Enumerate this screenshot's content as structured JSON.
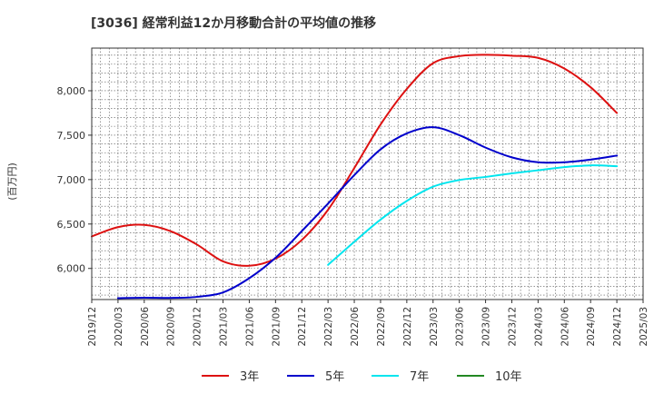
{
  "chart_data": {
    "type": "line",
    "title": "[3036]  経常利益12か月移動合計の平均値の推移",
    "ylabel": "(百万円)",
    "xlabel": "",
    "x_ticks": [
      "2019/12",
      "2020/03",
      "2020/06",
      "2020/09",
      "2020/12",
      "2021/03",
      "2021/06",
      "2021/09",
      "2021/12",
      "2022/03",
      "2022/06",
      "2022/09",
      "2022/12",
      "2023/03",
      "2023/06",
      "2023/09",
      "2023/12",
      "2024/03",
      "2024/06",
      "2024/09",
      "2024/12",
      "2025/03"
    ],
    "y_ticks": [
      6000,
      6500,
      7000,
      7500,
      8000
    ],
    "y_tick_labels": [
      "6,000",
      "6,500",
      "7,000",
      "7,500",
      "8,000"
    ],
    "xlim": [
      "2019/12",
      "2025/03"
    ],
    "ylim": [
      5650,
      8480
    ],
    "grid": true,
    "legend_position": "bottom",
    "series": [
      {
        "name": "3年",
        "color": "#dd1111",
        "x": [
          "2019/12",
          "2020/03",
          "2020/06",
          "2020/09",
          "2020/12",
          "2021/03",
          "2021/06",
          "2021/09",
          "2021/12",
          "2022/03",
          "2022/06",
          "2022/09",
          "2022/12",
          "2023/03",
          "2023/06",
          "2023/09",
          "2023/12",
          "2024/03",
          "2024/06",
          "2024/09",
          "2024/12"
        ],
        "values": [
          6360,
          6465,
          6490,
          6420,
          6270,
          6080,
          6030,
          6110,
          6320,
          6660,
          7130,
          7620,
          8020,
          8310,
          8390,
          8405,
          8395,
          8370,
          8250,
          8040,
          7750
        ]
      },
      {
        "name": "5年",
        "color": "#0000cc",
        "x": [
          "2020/03",
          "2020/06",
          "2020/09",
          "2020/12",
          "2021/03",
          "2021/06",
          "2021/09",
          "2021/12",
          "2022/03",
          "2022/06",
          "2022/09",
          "2022/12",
          "2023/03",
          "2023/06",
          "2023/09",
          "2023/12",
          "2024/03",
          "2024/06",
          "2024/09",
          "2024/12"
        ],
        "values": [
          5665,
          5670,
          5668,
          5680,
          5730,
          5890,
          6120,
          6420,
          6730,
          7050,
          7340,
          7520,
          7590,
          7500,
          7360,
          7250,
          7195,
          7195,
          7225,
          7270
        ]
      },
      {
        "name": "7年",
        "color": "#00e5ee",
        "x": [
          "2022/03",
          "2022/06",
          "2022/09",
          "2022/12",
          "2023/03",
          "2023/06",
          "2023/09",
          "2023/12",
          "2024/03",
          "2024/06",
          "2024/09",
          "2024/12"
        ],
        "values": [
          6040,
          6300,
          6550,
          6760,
          6920,
          6995,
          7030,
          7070,
          7105,
          7140,
          7160,
          7150
        ]
      },
      {
        "name": "10年",
        "color": "#228822",
        "x": [],
        "values": []
      }
    ]
  }
}
